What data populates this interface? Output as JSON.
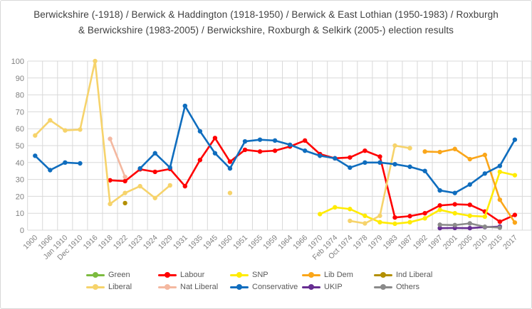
{
  "title": "Berwickshire (-1918) / Berwick & Haddington (1918-1950) / Berwick & East Lothian (1950-1983) / Roxburgh & Berwickshire (1983-2005) / Berwickshire, Roxburgh & Selkirk (2005-) election results",
  "colors": {
    "background": "#ffffff",
    "gridline": "#d9d9d9",
    "axis_text": "#808080",
    "title_text": "#3f3f3f",
    "legend_text": "#595959"
  },
  "chart_data": {
    "type": "line",
    "title": "Berwickshire (-1918) / Berwick & Haddington (1918-1950) / Berwick & East Lothian (1950-1983) / Roxburgh & Berwickshire (1983-2005) / Berwickshire, Roxburgh & Selkirk (2005-) election results",
    "xlabel": "",
    "ylabel": "",
    "ylim": [
      0,
      100
    ],
    "y_ticks": [
      0,
      10,
      20,
      30,
      40,
      50,
      60,
      70,
      80,
      90,
      100
    ],
    "grid": true,
    "legend_position": "bottom",
    "categories": [
      "1900",
      "1906",
      "Jan 1910",
      "Dec 1910",
      "1916",
      "1918",
      "1922",
      "1923",
      "1924",
      "1929",
      "1931",
      "1935",
      "1945",
      "1950",
      "1951",
      "1955",
      "1959",
      "1964",
      "1966",
      "1970",
      "Feb 1974",
      "Oct 1974",
      "1978",
      "1979",
      "1983",
      "1987",
      "1992",
      "1997",
      "2001",
      "2005",
      "2010",
      "2015",
      "2017"
    ],
    "series": [
      {
        "name": "Green",
        "color": "#7cbb3f",
        "values": [
          null,
          null,
          null,
          null,
          null,
          null,
          null,
          null,
          null,
          null,
          null,
          null,
          null,
          null,
          null,
          null,
          null,
          null,
          null,
          null,
          null,
          null,
          null,
          null,
          null,
          null,
          null,
          null,
          null,
          null,
          null,
          null,
          null
        ]
      },
      {
        "name": "Labour",
        "color": "#ff0000",
        "values": [
          null,
          null,
          null,
          null,
          null,
          29.5,
          29,
          36,
          34.5,
          36.2,
          26,
          41.5,
          54.5,
          40.5,
          47.5,
          46.5,
          47,
          49.5,
          53,
          45,
          42.5,
          43,
          47,
          43.5,
          7.5,
          8.3,
          10,
          14.6,
          15.3,
          15,
          11,
          5,
          9
        ]
      },
      {
        "name": "SNP",
        "color": "#ffeb00",
        "values": [
          null,
          null,
          null,
          null,
          null,
          null,
          null,
          null,
          null,
          null,
          null,
          null,
          null,
          null,
          null,
          null,
          null,
          null,
          null,
          9.5,
          13.5,
          12.5,
          8.5,
          4.7,
          3.8,
          4.7,
          7,
          12,
          10,
          8.5,
          8,
          34.5,
          32.5
        ]
      },
      {
        "name": "Lib Dem",
        "color": "#faa61a",
        "values": [
          null,
          null,
          null,
          null,
          null,
          null,
          null,
          null,
          null,
          null,
          null,
          null,
          null,
          null,
          null,
          null,
          null,
          null,
          null,
          null,
          null,
          null,
          null,
          null,
          null,
          null,
          46.5,
          46.2,
          48,
          42,
          44.5,
          18,
          4.5
        ]
      },
      {
        "name": "Ind Liberal",
        "color": "#b38f00",
        "values": [
          null,
          null,
          null,
          null,
          null,
          null,
          16,
          null,
          null,
          null,
          null,
          null,
          null,
          null,
          null,
          null,
          null,
          null,
          null,
          null,
          null,
          null,
          null,
          null,
          null,
          null,
          null,
          null,
          null,
          null,
          null,
          null,
          null
        ]
      },
      {
        "name": "Liberal",
        "color": "#f6d36b",
        "values": [
          56,
          65,
          59,
          59.5,
          100,
          15.5,
          22,
          26,
          19,
          26.5,
          null,
          null,
          null,
          22,
          null,
          null,
          null,
          null,
          null,
          null,
          null,
          5.5,
          4,
          8.5,
          50,
          48.5,
          null,
          null,
          null,
          null,
          null,
          null,
          null
        ]
      },
      {
        "name": "Nat Liberal",
        "color": "#f4b8a0",
        "values": [
          null,
          null,
          null,
          null,
          null,
          54,
          31.5,
          null,
          null,
          null,
          null,
          null,
          null,
          null,
          null,
          null,
          null,
          null,
          null,
          null,
          null,
          null,
          null,
          null,
          null,
          null,
          null,
          null,
          null,
          null,
          null,
          null,
          null
        ]
      },
      {
        "name": "Conservative",
        "color": "#0f6dbe",
        "values": [
          44,
          35.5,
          40,
          39.5,
          null,
          null,
          null,
          36.5,
          45.5,
          37,
          73.5,
          58.5,
          45.5,
          36.5,
          52.5,
          53.5,
          53,
          50.5,
          47,
          44,
          42.5,
          37,
          40,
          40,
          39,
          37.5,
          35,
          23.5,
          22,
          27,
          33.5,
          38,
          53.5
        ]
      },
      {
        "name": "UKIP",
        "color": "#662d91",
        "values": [
          null,
          null,
          null,
          null,
          null,
          null,
          null,
          null,
          null,
          null,
          null,
          null,
          null,
          null,
          null,
          null,
          null,
          null,
          null,
          null,
          null,
          null,
          null,
          null,
          null,
          null,
          null,
          1.2,
          1.3,
          1.2,
          1.8,
          2.1,
          null
        ]
      },
      {
        "name": "Others",
        "color": "#8a8a8a",
        "values": [
          null,
          null,
          null,
          null,
          null,
          null,
          null,
          null,
          null,
          null,
          null,
          null,
          null,
          null,
          null,
          null,
          null,
          null,
          null,
          null,
          null,
          null,
          null,
          null,
          null,
          null,
          null,
          3.2,
          3,
          4,
          2,
          1.5,
          null
        ]
      }
    ],
    "legend_rows": [
      [
        "Green",
        "Labour",
        "SNP",
        "Lib Dem",
        "Ind Liberal"
      ],
      [
        "Liberal",
        "Nat Liberal",
        "Conservative",
        "UKIP",
        "Others"
      ]
    ]
  }
}
